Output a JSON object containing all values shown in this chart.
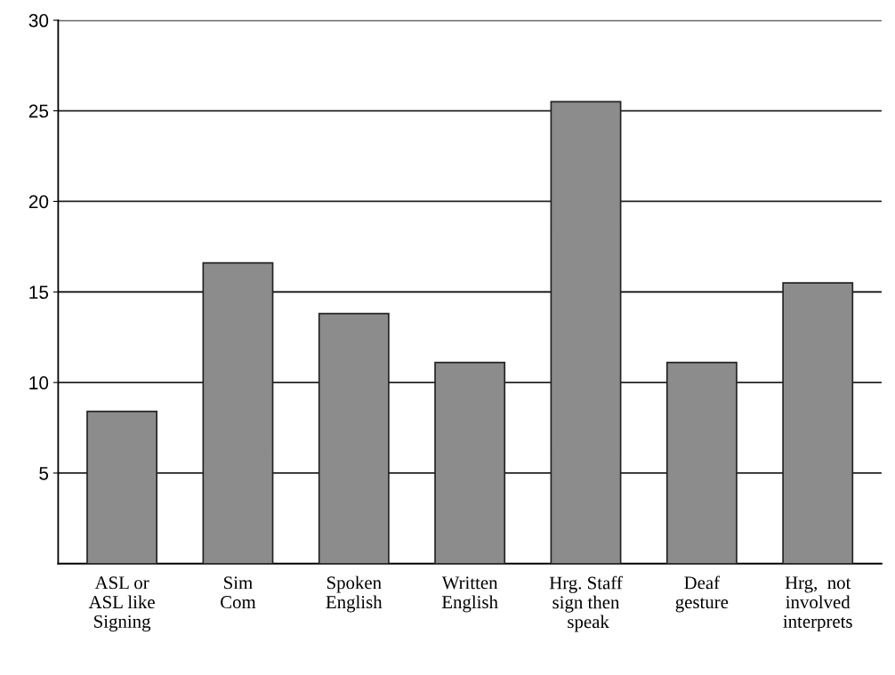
{
  "chart_data": {
    "type": "bar",
    "categories": [
      "ASL or\nASL like\nSigning",
      "Sim\nCom",
      "Spoken\nEnglish",
      "Written\nEnglish",
      "Hrg. Staff\nsign then\n speak",
      "Deaf\ngesture",
      "Hrg,  not\ninvolved\ninterprets"
    ],
    "values": [
      8.4,
      16.6,
      13.8,
      11.1,
      25.5,
      11.1,
      15.5
    ],
    "color": "#8c8c8c",
    "ylim": [
      0,
      30
    ],
    "yticks": [
      5,
      10,
      15,
      20,
      25,
      30
    ],
    "grid": "y"
  }
}
